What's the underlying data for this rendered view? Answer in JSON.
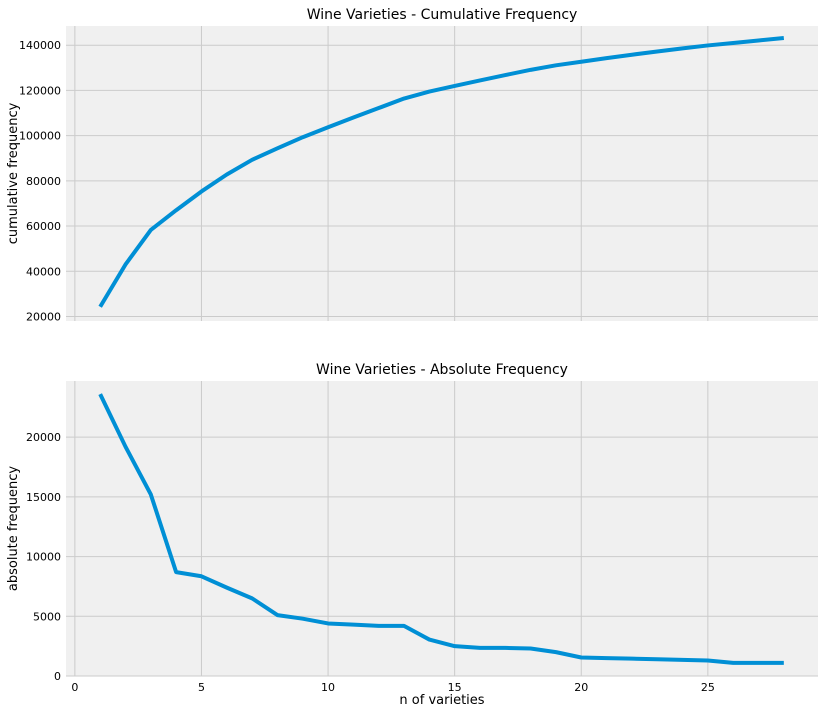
{
  "chart_data": [
    {
      "type": "line",
      "title": "Wine Varieties - Cumulative Frequency",
      "xlabel": "",
      "ylabel": "cumulative frequency",
      "xlim": [
        -0.35,
        29.35
      ],
      "ylim": [
        18000,
        148500
      ],
      "xticks": [
        0,
        5,
        10,
        15,
        20,
        25
      ],
      "yticks": [
        20000,
        40000,
        60000,
        80000,
        100000,
        120000,
        140000
      ],
      "grid": true,
      "color": "#008fd5",
      "x": [
        1,
        2,
        3,
        4,
        5,
        6,
        7,
        8,
        9,
        10,
        11,
        12,
        13,
        14,
        15,
        16,
        17,
        18,
        19,
        20,
        21,
        22,
        23,
        24,
        25,
        26,
        27,
        28
      ],
      "values": [
        24300,
        43000,
        58300,
        67000,
        75300,
        82800,
        89300,
        94400,
        99300,
        103700,
        108000,
        112200,
        116400,
        119500,
        122000,
        124400,
        126800,
        129100,
        131100,
        132700,
        134300,
        135800,
        137200,
        138600,
        139900,
        141000,
        142100,
        143200
      ]
    },
    {
      "type": "line",
      "title": "Wine Varieties - Absolute Frequency",
      "xlabel": "n of varieties",
      "ylabel": "absolute frequency",
      "xlim": [
        -0.35,
        29.35
      ],
      "ylim": [
        0,
        24700
      ],
      "xticks": [
        0,
        5,
        10,
        15,
        20,
        25
      ],
      "yticks": [
        0,
        5000,
        10000,
        15000,
        20000
      ],
      "grid": true,
      "color": "#008fd5",
      "x": [
        1,
        2,
        3,
        4,
        5,
        6,
        7,
        8,
        9,
        10,
        11,
        12,
        13,
        14,
        15,
        16,
        17,
        18,
        19,
        20,
        21,
        22,
        23,
        24,
        25,
        26,
        27,
        28
      ],
      "values": [
        23600,
        19200,
        15200,
        8700,
        8350,
        7400,
        6500,
        5100,
        4800,
        4400,
        4300,
        4200,
        4200,
        3050,
        2500,
        2350,
        2350,
        2300,
        2000,
        1550,
        1500,
        1450,
        1400,
        1350,
        1300,
        1100,
        1100,
        1100
      ]
    }
  ]
}
